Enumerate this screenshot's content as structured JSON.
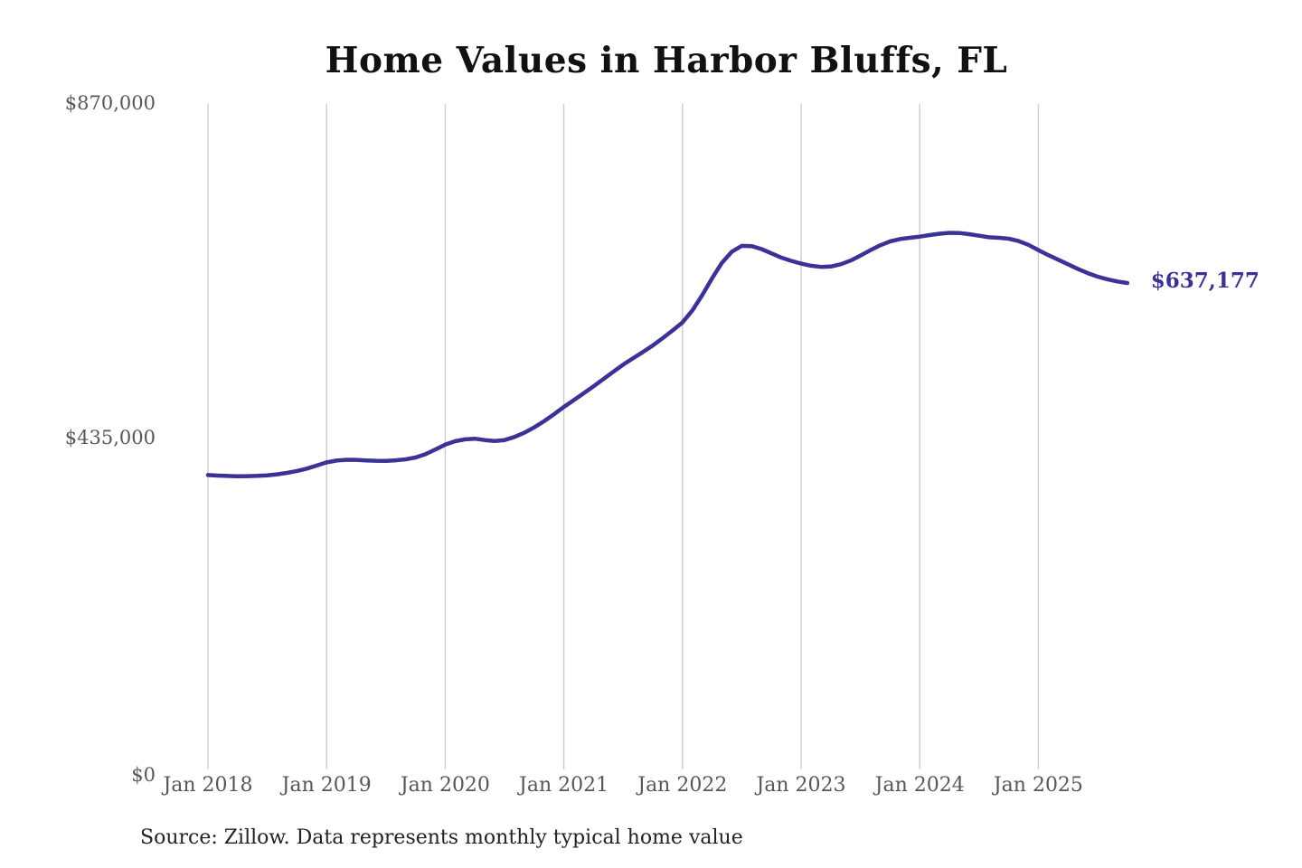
{
  "header": {
    "title": "Home Values in Harbor Bluffs, FL"
  },
  "footer": {
    "source_note": "Source: Zillow. Data represents monthly typical home value"
  },
  "colors": {
    "background": "#ffffff",
    "line": "#3a3294",
    "grid": "#cccccc",
    "axis_text": "#575757",
    "title_text": "#111111",
    "source_text": "#222222",
    "end_label_text": "#393294"
  },
  "chart_data": {
    "type": "line",
    "title": "Home Values in Harbor Bluffs, FL",
    "xlabel": "",
    "ylabel": "",
    "grid": "vertical-only",
    "legend": "none",
    "ylim": [
      0,
      870000
    ],
    "y_ticks": [
      0,
      435000,
      870000
    ],
    "y_tick_labels": [
      "$0",
      "$435,000",
      "$870,000"
    ],
    "x_tick_labels": [
      "Jan 2018",
      "Jan 2019",
      "Jan 2020",
      "Jan 2021",
      "Jan 2022",
      "Jan 2023",
      "Jan 2024",
      "Jan 2025"
    ],
    "x_monthly_start": "2018-01",
    "x_monthly_end": "2025-10",
    "series": [
      {
        "name": "Monthly typical home value",
        "final_value": 637177,
        "final_value_label": "$637,177",
        "monthly_values": [
          387500,
          386800,
          386300,
          386000,
          386100,
          386400,
          387200,
          388500,
          390300,
          392800,
          395900,
          399800,
          404000,
          406300,
          407400,
          407200,
          406600,
          406100,
          406000,
          406700,
          408000,
          410300,
          414500,
          420800,
          427000,
          431500,
          434000,
          434800,
          433000,
          431800,
          433000,
          437000,
          442500,
          449500,
          457500,
          466500,
          476000,
          484800,
          493800,
          502800,
          512200,
          521800,
          531000,
          539400,
          547500,
          556000,
          565500,
          575500,
          586000,
          601500,
          621500,
          643500,
          663500,
          678000,
          685500,
          685200,
          681300,
          675800,
          670300,
          666000,
          662500,
          659700,
          658200,
          658600,
          661500,
          666400,
          672800,
          679800,
          686300,
          691300,
          694300,
          696000,
          697500,
          699500,
          701300,
          702500,
          702200,
          700700,
          698700,
          696700,
          696000,
          694800,
          691800,
          686800,
          680000,
          673500,
          667500,
          661500,
          655500,
          650000,
          645500,
          642000,
          639200,
          637177
        ]
      }
    ]
  }
}
